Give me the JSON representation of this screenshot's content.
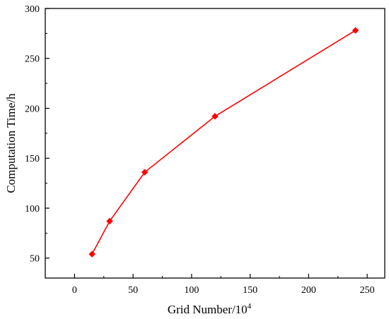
{
  "chart_data": {
    "type": "line",
    "title": "",
    "xlabel": "Grid Number/10",
    "xlabel_superscript": "4",
    "ylabel": "Computation Time/h",
    "xlim": [
      -25,
      265
    ],
    "ylim": [
      30,
      300
    ],
    "x_ticks": [
      0,
      50,
      100,
      150,
      200,
      250
    ],
    "y_ticks": [
      50,
      100,
      150,
      200,
      250,
      300
    ],
    "x_tick_labels": [
      "0",
      "50",
      "100",
      "150",
      "200",
      "250"
    ],
    "y_tick_labels": [
      "50",
      "100",
      "150",
      "200",
      "250",
      "300"
    ],
    "grid": false,
    "legend": "none",
    "series": [
      {
        "x": [
          15,
          30,
          60,
          120,
          240
        ],
        "y": [
          54,
          87,
          136,
          192,
          278
        ],
        "color": "#ff0000",
        "marker": "diamond"
      }
    ]
  }
}
